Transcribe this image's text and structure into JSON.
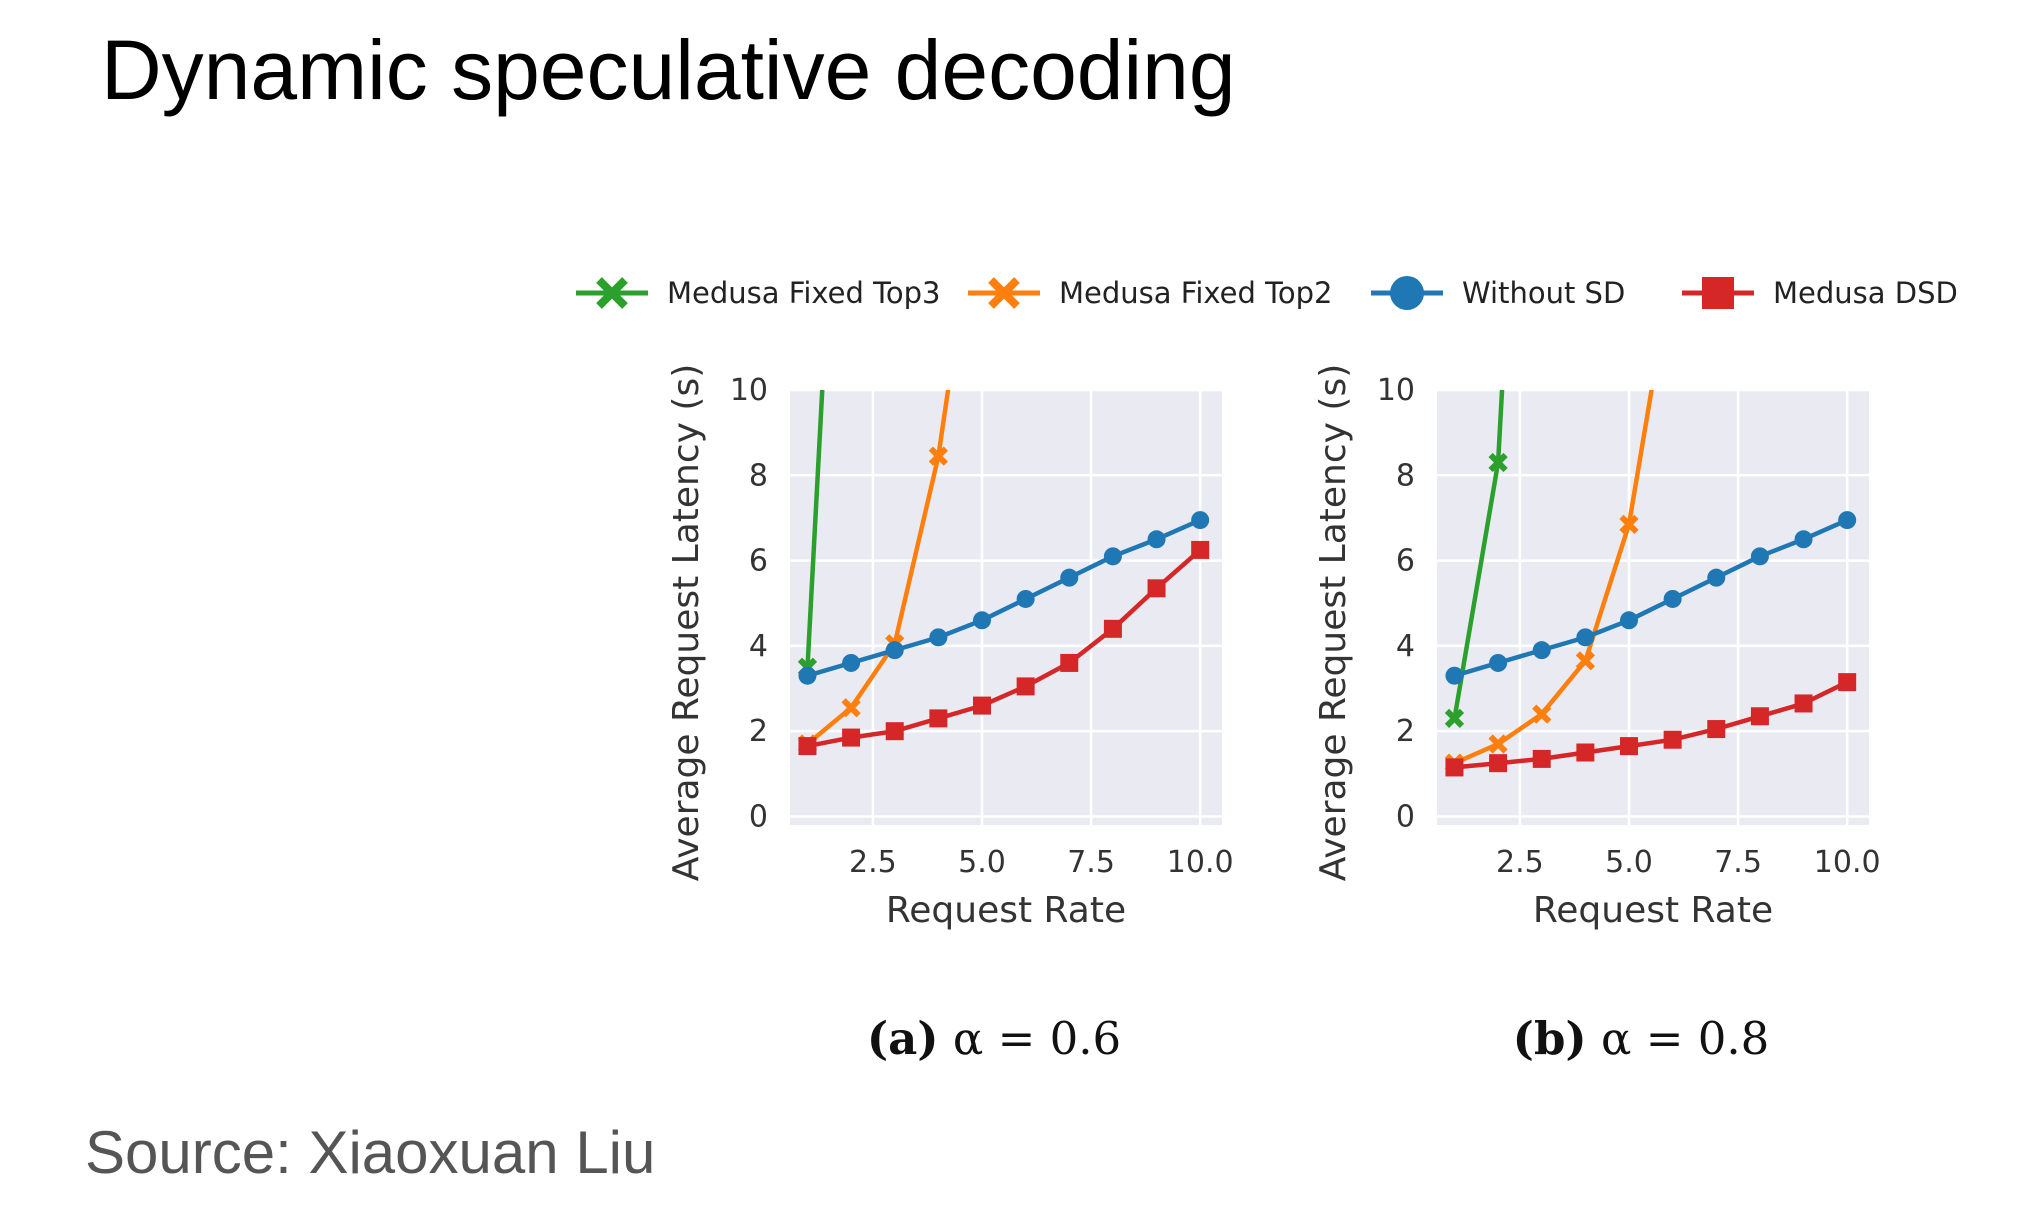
{
  "slide": {
    "title": "Dynamic speculative decoding",
    "source": "Source: Xiaoxuan Liu"
  },
  "legend": [
    {
      "name": "Medusa Fixed Top3",
      "color": "#2ca02c",
      "marker": "x"
    },
    {
      "name": "Medusa Fixed Top2",
      "color": "#ff7f0e",
      "marker": "x"
    },
    {
      "name": "Without SD",
      "color": "#1f77b4",
      "marker": "circle"
    },
    {
      "name": "Medusa DSD",
      "color": "#d62728",
      "marker": "square"
    }
  ],
  "chart_data": [
    {
      "type": "line",
      "caption_tag": "(a)",
      "caption_expr": "α = 0.6",
      "xlabel": "Request Rate",
      "ylabel": "Average Request Latency (s)",
      "xlim": [
        0.6,
        10.5
      ],
      "ylim": [
        -0.2,
        10
      ],
      "xticks": [
        "2.5",
        "5.0",
        "7.5",
        "10.0"
      ],
      "yticks": [
        "0",
        "2",
        "4",
        "6",
        "8",
        "10"
      ],
      "grid": true,
      "series": [
        {
          "name": "Medusa Fixed Top3",
          "color": "#2ca02c",
          "marker": "x",
          "x": [
            1,
            1.35
          ],
          "y": [
            3.5,
            10.2
          ]
        },
        {
          "name": "Medusa Fixed Top2",
          "color": "#ff7f0e",
          "marker": "x",
          "x": [
            1,
            2,
            3,
            4,
            4.25
          ],
          "y": [
            1.7,
            2.55,
            4.05,
            8.45,
            10.2
          ]
        },
        {
          "name": "Without SD",
          "color": "#1f77b4",
          "marker": "circle",
          "x": [
            1,
            2,
            3,
            4,
            5,
            6,
            7,
            8,
            9,
            10
          ],
          "y": [
            3.3,
            3.6,
            3.9,
            4.2,
            4.6,
            5.1,
            5.6,
            6.1,
            6.5,
            6.95
          ]
        },
        {
          "name": "Medusa DSD",
          "color": "#d62728",
          "marker": "square",
          "x": [
            1,
            2,
            3,
            4,
            5,
            6,
            7,
            8,
            9,
            10
          ],
          "y": [
            1.65,
            1.85,
            2.0,
            2.3,
            2.6,
            3.05,
            3.6,
            4.4,
            5.35,
            6.25
          ]
        }
      ]
    },
    {
      "type": "line",
      "caption_tag": "(b)",
      "caption_expr": "α = 0.8",
      "xlabel": "Request Rate",
      "ylabel": "Average Request Latency (s)",
      "xlim": [
        0.6,
        10.5
      ],
      "ylim": [
        -0.2,
        10
      ],
      "xticks": [
        "2.5",
        "5.0",
        "7.5",
        "10.0"
      ],
      "yticks": [
        "0",
        "2",
        "4",
        "6",
        "8",
        "10"
      ],
      "grid": true,
      "series": [
        {
          "name": "Medusa Fixed Top3",
          "color": "#2ca02c",
          "marker": "x",
          "x": [
            1,
            2,
            2.1
          ],
          "y": [
            2.3,
            8.3,
            10.2
          ]
        },
        {
          "name": "Medusa Fixed Top2",
          "color": "#ff7f0e",
          "marker": "x",
          "x": [
            1,
            2,
            3,
            4,
            5,
            5.55
          ],
          "y": [
            1.25,
            1.7,
            2.4,
            3.65,
            6.85,
            10.2
          ]
        },
        {
          "name": "Without SD",
          "color": "#1f77b4",
          "marker": "circle",
          "x": [
            1,
            2,
            3,
            4,
            5,
            6,
            7,
            8,
            9,
            10
          ],
          "y": [
            3.3,
            3.6,
            3.9,
            4.2,
            4.6,
            5.1,
            5.6,
            6.1,
            6.5,
            6.95
          ]
        },
        {
          "name": "Medusa DSD",
          "color": "#d62728",
          "marker": "square",
          "x": [
            1,
            2,
            3,
            4,
            5,
            6,
            7,
            8,
            9,
            10
          ],
          "y": [
            1.15,
            1.25,
            1.35,
            1.5,
            1.65,
            1.8,
            2.05,
            2.35,
            2.65,
            3.15
          ]
        }
      ]
    }
  ]
}
